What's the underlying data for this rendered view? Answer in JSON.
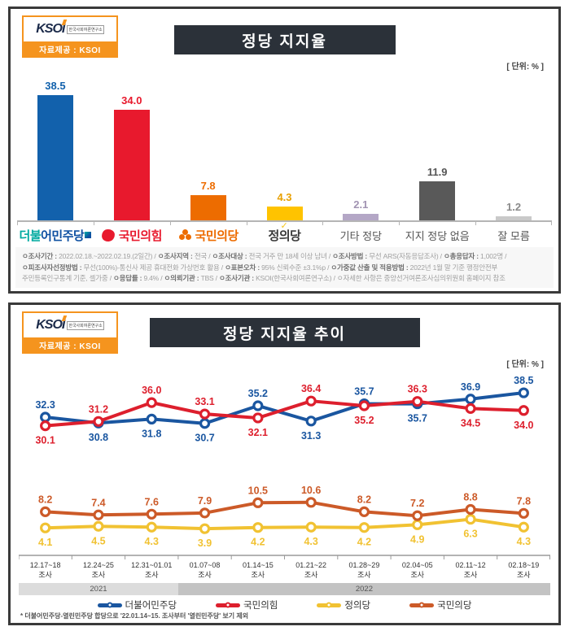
{
  "logo": {
    "brand": "KSOI",
    "brand_sub": "한국사회여론연구소",
    "provider_label": "자료제공 : KSOI"
  },
  "panel1": {
    "title": "정당 지지율",
    "unit_label": "[ 단위: % ]",
    "footnote_lines": [
      [
        {
          "t": "ㅇ조사기간 : ",
          "b": 1
        },
        {
          "t": "2022.02.18.~2022.02.19.(2일간)  /  ",
          "b": 0
        },
        {
          "t": "ㅇ조사지역 : ",
          "b": 1
        },
        {
          "t": "전국 / ",
          "b": 0
        },
        {
          "t": "ㅇ조사대상 : ",
          "b": 1
        },
        {
          "t": "전국 거주 만 18세 이상 남녀 / ",
          "b": 0
        },
        {
          "t": "ㅇ조사방법 : ",
          "b": 1
        },
        {
          "t": "무선 ARS(자동응답조사) / ",
          "b": 0
        },
        {
          "t": "ㅇ총응답자 : ",
          "b": 1
        },
        {
          "t": "1,002명 /",
          "b": 0
        }
      ],
      [
        {
          "t": "ㅇ피조사자선정방법 : ",
          "b": 1
        },
        {
          "t": "무선(100%)-통신사 제공 휴대전화 가상번호 활용 / ",
          "b": 0
        },
        {
          "t": "ㅇ표본오차 : ",
          "b": 1
        },
        {
          "t": "95% 신뢰수준 ±3.1%p / ",
          "b": 0
        },
        {
          "t": "ㅇ가중값 산출 및 적용방법 : ",
          "b": 1
        },
        {
          "t": "2022년 1월 말 기준 행정안전부",
          "b": 0
        }
      ],
      [
        {
          "t": "주민등록인구통계 기준, 셀가중 / ",
          "b": 0
        },
        {
          "t": "ㅇ응답률 : ",
          "b": 1
        },
        {
          "t": "9.4% / ",
          "b": 0
        },
        {
          "t": "ㅇ의뢰기관 : ",
          "b": 1
        },
        {
          "t": "TBS / ",
          "b": 0
        },
        {
          "t": "ㅇ조사기관 : ",
          "b": 1
        },
        {
          "t": "KSOI(한국사회여론연구소) / ",
          "b": 0
        },
        {
          "t": "ㅇ자세한 사항은 중앙선거여론조사심의위원회 홈페이지 참조",
          "b": 0
        }
      ]
    ]
  },
  "panel2": {
    "title": "정당 지지율 추이",
    "unit_label": "[ 단위: % ]",
    "footnote": "* 더불어민주당-열린민주당 합당으로 '22.01.14~15. 조사부터 '열린민주당' 보기 제외"
  },
  "chart_data": [
    {
      "type": "bar",
      "title": "정당 지지율",
      "unit": "%",
      "categories": [
        "더불어민주당",
        "국민의힘",
        "국민의당",
        "정의당",
        "기타 정당",
        "지지 정당 없음",
        "잘 모름"
      ],
      "category_styles": [
        "dpk",
        "ppp",
        "pp",
        "jp",
        "plain",
        "plain",
        "plain"
      ],
      "values": [
        38.5,
        34.0,
        7.8,
        4.3,
        2.1,
        11.9,
        1.2
      ],
      "bar_colors": [
        "#1261ac",
        "#e8192d",
        "#ed6c00",
        "#ffc300",
        "#b4a7c6",
        "#595959",
        "#c9c9c9"
      ],
      "label_colors": [
        "#1261ac",
        "#e8192d",
        "#ed6c00",
        "#e8a000",
        "#a193b2",
        "#555555",
        "#8a8a8a"
      ],
      "ylim": [
        0,
        42
      ],
      "grid": false
    },
    {
      "type": "line",
      "title": "정당 지지율 추이",
      "unit": "%",
      "x_labels": [
        "12.17~18",
        "12.24~25",
        "12.31~01.01",
        "01.07~08",
        "01.14~15",
        "01.21~22",
        "01.28~29",
        "02.04~05",
        "02.11~12",
        "02.18~19"
      ],
      "x_sublabel": "조사",
      "year_bands": [
        {
          "label": "2021",
          "cols": 3
        },
        {
          "label": "2022",
          "cols": 7
        }
      ],
      "ylim": [
        0,
        42
      ],
      "grid": false,
      "legend_position": "bottom",
      "series": [
        {
          "name": "더불어민주당",
          "color": "#1a56a0",
          "group": 0,
          "values": [
            32.3,
            30.8,
            31.8,
            30.7,
            35.2,
            31.3,
            35.7,
            35.7,
            36.9,
            38.5
          ]
        },
        {
          "name": "국민의힘",
          "color": "#dd1f2d",
          "group": 0,
          "values": [
            30.1,
            31.2,
            36.0,
            33.1,
            32.1,
            36.4,
            35.2,
            36.3,
            34.5,
            34.0
          ]
        },
        {
          "name": "정의당",
          "color": "#f1c232",
          "group": 1,
          "values": [
            4.1,
            4.5,
            4.3,
            3.9,
            4.2,
            4.3,
            4.2,
            4.9,
            6.3,
            4.3
          ]
        },
        {
          "name": "국민의당",
          "color": "#cc5a28",
          "group": 1,
          "values": [
            8.2,
            7.4,
            7.6,
            7.9,
            10.5,
            10.6,
            8.2,
            7.2,
            8.8,
            7.8
          ]
        }
      ],
      "legend": [
        "더불어민주당",
        "국민의힘",
        "정의당",
        "국민의당"
      ]
    }
  ]
}
